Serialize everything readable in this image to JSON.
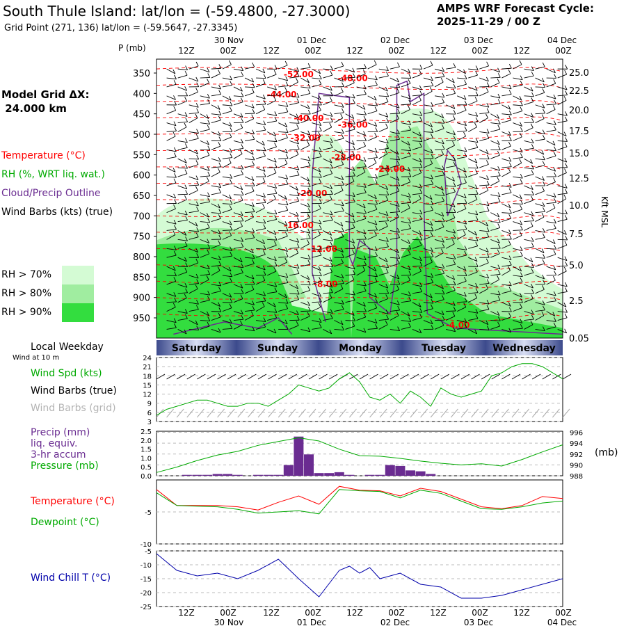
{
  "header": {
    "title": "South Thule Island:  lat/lon = (-59.4800, -27.3000)",
    "subtitle": "Grid Point (271, 136) lat/lon = (-59.5647, -27.3345)",
    "cycle_line1": "AMPS WRF Forecast Cycle:",
    "cycle_line2": "2025-11-29 / 00  Z",
    "grid_line1": "Model Grid ΔX:",
    "grid_line2": " 24.000 km"
  },
  "legend": {
    "temperature": "Temperature (°C)",
    "rh": "RH (%, WRT liq. wat.)",
    "cloud": "Cloud/Precip Outline",
    "wind": "Wind Barbs (kts) (true)",
    "rh70": "RH > 70%",
    "rh80": "RH > 80%",
    "rh90": "RH > 90%",
    "colors": {
      "temperature": "#ff0000",
      "rh": "#00aa00",
      "cloud": "#6a2c91",
      "rh70": "#d4fbd4",
      "rh80": "#a0eda0",
      "rh90": "#33dd3f"
    }
  },
  "chart_data": [
    {
      "type": "heatmap",
      "title": "",
      "ylabel": "P (mb)",
      "y2label": "Kft MSL",
      "time_ticks_top": [
        "12Z",
        "00Z",
        "12Z",
        "00Z",
        "12Z",
        "00Z",
        "12Z",
        "00Z",
        "12Z",
        "00Z"
      ],
      "date_labels": [
        "30 Nov",
        "01 Dec",
        "02 Dec",
        "03 Dec",
        "04 Dec"
      ],
      "pressure_ticks": [
        350,
        400,
        450,
        500,
        550,
        600,
        650,
        700,
        750,
        800,
        850,
        900,
        950
      ],
      "height_ticks": [
        "25.0",
        "22.5",
        "20.0",
        "17.5",
        "15.0",
        "12.5",
        "10.0",
        "7.5",
        "5.0",
        "2.5",
        "0.05"
      ],
      "temperature_labels": [
        {
          "text": "-52.00",
          "hour": 42,
          "p": 360
        },
        {
          "text": "-48.00",
          "hour": 58,
          "p": 370
        },
        {
          "text": "-44.00",
          "hour": 37,
          "p": 410
        },
        {
          "text": "-40.00",
          "hour": 45,
          "p": 468
        },
        {
          "text": "-36.00",
          "hour": 58,
          "p": 484
        },
        {
          "text": "-32.00",
          "hour": 44,
          "p": 516
        },
        {
          "text": "-28.00",
          "hour": 56,
          "p": 564
        },
        {
          "text": "-24.00",
          "hour": 69,
          "p": 592
        },
        {
          "text": "-20.00",
          "hour": 46,
          "p": 652
        },
        {
          "text": "-16.00",
          "hour": 42,
          "p": 730
        },
        {
          "text": "-12.00",
          "hour": 49,
          "p": 788
        },
        {
          "text": "-8.00",
          "hour": 50,
          "p": 874
        },
        {
          "text": "-4.00",
          "hour": 89,
          "p": 975
        }
      ]
    },
    {
      "type": "line",
      "title": "Local Weekday",
      "subtitle": "Wind at 10 m",
      "weekdays": [
        "Saturday",
        "Sunday",
        "Monday",
        "Tuesday",
        "Wednesday"
      ],
      "series": [
        {
          "name": "Wind Spd (kts)",
          "color": "#00aa00",
          "x": [
            0,
            3,
            6,
            9,
            12,
            15,
            18,
            21,
            24,
            27,
            30,
            33,
            36,
            39,
            42,
            45,
            48,
            51,
            54,
            57,
            60,
            63,
            66,
            69,
            72,
            75,
            78,
            81,
            84,
            87,
            90,
            93,
            96,
            99,
            102,
            105,
            108,
            111,
            114,
            117,
            120
          ],
          "values": [
            5,
            7,
            8,
            9,
            10,
            10,
            9,
            8,
            8,
            9,
            9,
            8,
            10,
            12,
            15,
            14,
            13,
            14,
            17,
            19,
            16,
            11,
            10,
            12,
            9,
            13,
            11,
            8,
            14,
            12,
            11,
            12,
            13,
            18,
            19,
            21,
            22,
            22,
            21,
            19,
            17
          ]
        }
      ],
      "labels": [
        "Wind Spd (kts)",
        "Wind Barbs (true)",
        "Wind Barbs (grid)"
      ],
      "yticks": [
        3,
        6,
        9,
        12,
        15,
        18,
        21,
        24
      ],
      "ylim": [
        3,
        24
      ]
    },
    {
      "type": "bar",
      "labels": [
        "Precip (mm)",
        "liq. equiv.",
        "3-hr accum",
        "Pressure (mb)"
      ],
      "y2label": "(mb)",
      "precip": {
        "color": "#6a2c91",
        "x": [
          9,
          12,
          15,
          18,
          21,
          24,
          30,
          33,
          36,
          39,
          42,
          45,
          48,
          51,
          54,
          57,
          60,
          63,
          66,
          69,
          72,
          75,
          78,
          81,
          84,
          87,
          90
        ],
        "values": [
          0.05,
          0.05,
          0.05,
          0.1,
          0.1,
          0.05,
          0.05,
          0.05,
          0.05,
          0.6,
          2.2,
          1.2,
          0.15,
          0.15,
          0.2,
          0.05,
          0.0,
          0.05,
          0.05,
          0.6,
          0.55,
          0.3,
          0.25,
          0.1,
          0,
          0,
          0
        ]
      },
      "pressure": {
        "name": "Pressure (mb)",
        "color": "#00aa00",
        "x": [
          0,
          6,
          12,
          18,
          24,
          30,
          36,
          42,
          48,
          54,
          60,
          66,
          72,
          78,
          84,
          90,
          96,
          102,
          108,
          114,
          120
        ],
        "values": [
          988.6,
          989.6,
          990.8,
          991.8,
          992.5,
          993.6,
          994.3,
          995,
          994.4,
          992.9,
          991.7,
          991.6,
          991.2,
          990.7,
          990.3,
          990,
          990.2,
          989.8,
          991,
          992.4,
          993.7
        ]
      },
      "yticks": [
        "0.0",
        "0.5",
        "1.0",
        "1.5",
        "2.0",
        "2.5"
      ],
      "y2ticks": [
        988,
        990,
        992,
        994,
        996
      ],
      "ylim": [
        0,
        2.5
      ],
      "y2lim": [
        988,
        996.2
      ]
    },
    {
      "type": "line",
      "labels": [
        "Temperature (°C)",
        "Dewpoint (°C)"
      ],
      "yticks": [
        -5,
        -10
      ],
      "ylim": [
        -10,
        0
      ],
      "series": [
        {
          "name": "Temperature (°C)",
          "color": "#ff0000",
          "x": [
            0,
            6,
            12,
            18,
            24,
            30,
            36,
            42,
            48,
            54,
            60,
            66,
            72,
            78,
            84,
            90,
            96,
            102,
            108,
            114,
            120
          ],
          "values": [
            -1.5,
            -4,
            -4,
            -4,
            -4.2,
            -4.7,
            -3.5,
            -2.5,
            -3.8,
            -1,
            -1.6,
            -1.7,
            -2.5,
            -1.3,
            -1.8,
            -3,
            -4.2,
            -4.5,
            -4,
            -2.6,
            -2.9
          ]
        },
        {
          "name": "Dewpoint (°C)",
          "color": "#00aa00",
          "x": [
            0,
            6,
            12,
            18,
            24,
            30,
            36,
            42,
            48,
            54,
            60,
            66,
            72,
            78,
            84,
            90,
            96,
            102,
            108,
            114,
            120
          ],
          "values": [
            -2,
            -4,
            -4.1,
            -4.2,
            -4.6,
            -5.2,
            -5,
            -4.8,
            -5.3,
            -1.5,
            -1.7,
            -1.8,
            -2.8,
            -1.6,
            -2.1,
            -3.3,
            -4.5,
            -4.6,
            -4.2,
            -3.6,
            -3.3
          ]
        }
      ]
    },
    {
      "type": "line",
      "labels": [
        "Wind Chill T (°C)"
      ],
      "yticks": [
        -5,
        -10,
        -15,
        -20,
        -25
      ],
      "ylim": [
        -25,
        -5
      ],
      "series": [
        {
          "name": "Wind Chill T (°C)",
          "color": "#0000aa",
          "x": [
            0,
            6,
            12,
            18,
            24,
            30,
            36,
            42,
            48,
            54,
            57,
            60,
            63,
            66,
            72,
            78,
            84,
            90,
            96,
            102,
            108,
            114,
            120
          ],
          "values": [
            -6,
            -12,
            -14,
            -13,
            -15,
            -12,
            -8,
            -15,
            -21.5,
            -12,
            -10.5,
            -13,
            -11,
            -15,
            -13,
            -17,
            -18,
            -22,
            -22,
            -21,
            -19,
            -17,
            -15
          ]
        }
      ],
      "time_ticks_bottom": [
        "12Z",
        "00Z",
        "12Z",
        "00Z",
        "12Z",
        "00Z",
        "12Z",
        "00Z",
        "12Z",
        "00Z"
      ]
    }
  ]
}
